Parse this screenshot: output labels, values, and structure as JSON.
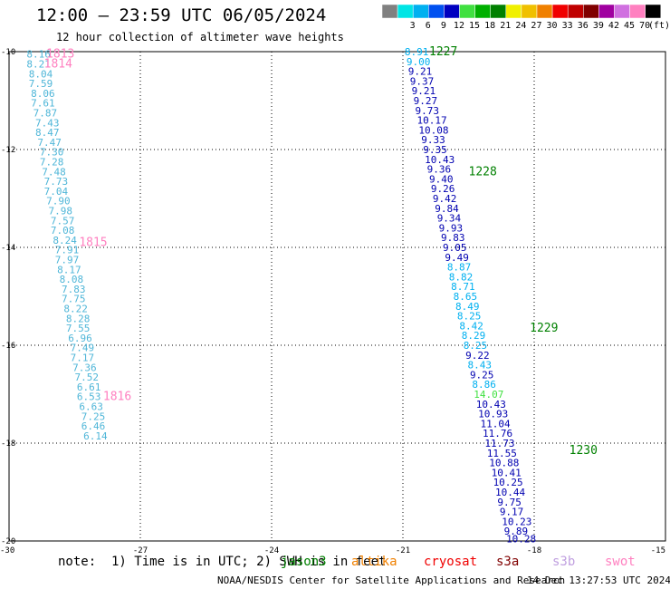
{
  "header": {
    "title": "12:00 — 23:59 UTC 06/05/2024",
    "subtitle": "12 hour collection of altimeter wave heights"
  },
  "colorbar": {
    "unit": "(ft)",
    "bins": [
      {
        "label": "",
        "color": "#808080"
      },
      {
        "label": "3",
        "color": "#00e5e5"
      },
      {
        "label": "6",
        "color": "#00b0f0"
      },
      {
        "label": "9",
        "color": "#0050f0"
      },
      {
        "label": "12",
        "color": "#0000c0"
      },
      {
        "label": "15",
        "color": "#40e040"
      },
      {
        "label": "18",
        "color": "#00b000"
      },
      {
        "label": "21",
        "color": "#008000"
      },
      {
        "label": "24",
        "color": "#f0f000"
      },
      {
        "label": "27",
        "color": "#f0c000"
      },
      {
        "label": "30",
        "color": "#f08000"
      },
      {
        "label": "33",
        "color": "#f00000"
      },
      {
        "label": "36",
        "color": "#c00000"
      },
      {
        "label": "39",
        "color": "#800000"
      },
      {
        "label": "42",
        "color": "#a000a0"
      },
      {
        "label": "45",
        "color": "#d070e0"
      },
      {
        "label": "70",
        "color": "#ff80c0"
      },
      {
        "label": "",
        "color": "#000000"
      }
    ]
  },
  "axes": {
    "x_ticks": [
      "-30",
      "-27",
      "-24",
      "-21",
      "-18",
      "-15"
    ],
    "y_ticks": [
      "-10",
      "-12",
      "-14",
      "-16",
      "-18",
      "-20"
    ]
  },
  "tracks": [
    {
      "name": "swot",
      "color": "#4fb6d8",
      "time_color": "#ff80c0",
      "times": [
        {
          "label": "1813",
          "lon": -29.15,
          "lat": -10.05
        },
        {
          "label": "1814",
          "lon": -29.2,
          "lat": -10.25
        },
        {
          "label": "1815",
          "lon": -28.4,
          "lat": -13.9
        },
        {
          "label": "1816",
          "lon": -27.85,
          "lat": -17.05
        }
      ],
      "points": [
        {
          "lon": -29.6,
          "lat": -10.05,
          "value": "8.16"
        },
        {
          "lon": -29.6,
          "lat": -10.25,
          "value": "8.21"
        },
        {
          "lon": -29.55,
          "lat": -10.45,
          "value": "8.04"
        },
        {
          "lon": -29.55,
          "lat": -10.65,
          "value": "7.59"
        },
        {
          "lon": -29.5,
          "lat": -10.85,
          "value": "8.06"
        },
        {
          "lon": -29.5,
          "lat": -11.05,
          "value": "7.61"
        },
        {
          "lon": -29.45,
          "lat": -11.25,
          "value": "7.87"
        },
        {
          "lon": -29.4,
          "lat": -11.45,
          "value": "7.43"
        },
        {
          "lon": -29.4,
          "lat": -11.65,
          "value": "8.47"
        },
        {
          "lon": -29.35,
          "lat": -11.85,
          "value": "7.47"
        },
        {
          "lon": -29.3,
          "lat": -12.05,
          "value": "7.30"
        },
        {
          "lon": -29.3,
          "lat": -12.25,
          "value": "7.28"
        },
        {
          "lon": -29.25,
          "lat": -12.45,
          "value": "7.48"
        },
        {
          "lon": -29.2,
          "lat": -12.65,
          "value": "7.73"
        },
        {
          "lon": -29.2,
          "lat": -12.85,
          "value": "7.04"
        },
        {
          "lon": -29.15,
          "lat": -13.05,
          "value": "7.90"
        },
        {
          "lon": -29.1,
          "lat": -13.25,
          "value": "7.98"
        },
        {
          "lon": -29.05,
          "lat": -13.45,
          "value": "7.57"
        },
        {
          "lon": -29.05,
          "lat": -13.65,
          "value": "7.08"
        },
        {
          "lon": -29.0,
          "lat": -13.85,
          "value": "8.24"
        },
        {
          "lon": -28.95,
          "lat": -14.05,
          "value": "7.91"
        },
        {
          "lon": -28.95,
          "lat": -14.25,
          "value": "7.97"
        },
        {
          "lon": -28.9,
          "lat": -14.45,
          "value": "8.17"
        },
        {
          "lon": -28.85,
          "lat": -14.65,
          "value": "8.08"
        },
        {
          "lon": -28.8,
          "lat": -14.85,
          "value": "7.83"
        },
        {
          "lon": -28.8,
          "lat": -15.05,
          "value": "7.75"
        },
        {
          "lon": -28.75,
          "lat": -15.25,
          "value": "8.22"
        },
        {
          "lon": -28.7,
          "lat": -15.45,
          "value": "8.28"
        },
        {
          "lon": -28.7,
          "lat": -15.65,
          "value": "7.55"
        },
        {
          "lon": -28.65,
          "lat": -15.85,
          "value": "6.96"
        },
        {
          "lon": -28.6,
          "lat": -16.05,
          "value": "7.49"
        },
        {
          "lon": -28.6,
          "lat": -16.25,
          "value": "7.17"
        },
        {
          "lon": -28.55,
          "lat": -16.45,
          "value": "7.36"
        },
        {
          "lon": -28.5,
          "lat": -16.65,
          "value": "7.52"
        },
        {
          "lon": -28.45,
          "lat": -16.85,
          "value": "6.61"
        },
        {
          "lon": -28.45,
          "lat": -17.05,
          "value": "6.53"
        },
        {
          "lon": -28.4,
          "lat": -17.25,
          "value": "6.63"
        },
        {
          "lon": -28.35,
          "lat": -17.45,
          "value": "7.25"
        },
        {
          "lon": -28.35,
          "lat": -17.65,
          "value": "6.46"
        },
        {
          "lon": -28.3,
          "lat": -17.85,
          "value": "6.14"
        }
      ]
    },
    {
      "name": "jason",
      "color": "#0000b0",
      "time_color": "#008000",
      "times": [
        {
          "label": "1227",
          "lon": -20.4,
          "lat": -10.0
        },
        {
          "label": "1228",
          "lon": -19.5,
          "lat": -12.45
        },
        {
          "label": "1229",
          "lon": -18.1,
          "lat": -15.65
        },
        {
          "lon": -17.2,
          "lat": -18.15,
          "label": "1230"
        }
      ],
      "points": [
        {
          "lon": -20.96,
          "lat": -10.0,
          "value": "8.91",
          "c": "#00b0f0"
        },
        {
          "lon": -20.92,
          "lat": -10.2,
          "value": "9.00",
          "c": "#00b0f0"
        },
        {
          "lon": -20.88,
          "lat": -10.4,
          "value": "9.21"
        },
        {
          "lon": -20.84,
          "lat": -10.6,
          "value": "9.37"
        },
        {
          "lon": -20.8,
          "lat": -10.8,
          "value": "9.21"
        },
        {
          "lon": -20.76,
          "lat": -11.0,
          "value": "9.27"
        },
        {
          "lon": -20.72,
          "lat": -11.2,
          "value": "9.73"
        },
        {
          "lon": -20.68,
          "lat": -11.4,
          "value": "10.17"
        },
        {
          "lon": -20.64,
          "lat": -11.6,
          "value": "10.08"
        },
        {
          "lon": -20.58,
          "lat": -11.8,
          "value": "9.33"
        },
        {
          "lon": -20.54,
          "lat": -12.0,
          "value": "9.35"
        },
        {
          "lon": -20.5,
          "lat": -12.2,
          "value": "10.43"
        },
        {
          "lon": -20.45,
          "lat": -12.4,
          "value": "9.36"
        },
        {
          "lon": -20.4,
          "lat": -12.6,
          "value": "9.40"
        },
        {
          "lon": -20.36,
          "lat": -12.8,
          "value": "9.26"
        },
        {
          "lon": -20.32,
          "lat": -13.0,
          "value": "9.42"
        },
        {
          "lon": -20.27,
          "lat": -13.2,
          "value": "9.84"
        },
        {
          "lon": -20.22,
          "lat": -13.4,
          "value": "9.34"
        },
        {
          "lon": -20.18,
          "lat": -13.6,
          "value": "9.93"
        },
        {
          "lon": -20.13,
          "lat": -13.8,
          "value": "9.83"
        },
        {
          "lon": -20.09,
          "lat": -14.0,
          "value": "9.05"
        },
        {
          "lon": -20.04,
          "lat": -14.2,
          "value": "9.49"
        },
        {
          "lon": -19.99,
          "lat": -14.4,
          "value": "8.87",
          "c": "#00b0f0"
        },
        {
          "lon": -19.95,
          "lat": -14.6,
          "value": "8.82",
          "c": "#00b0f0"
        },
        {
          "lon": -19.9,
          "lat": -14.8,
          "value": "8.71",
          "c": "#00b0f0"
        },
        {
          "lon": -19.85,
          "lat": -15.0,
          "value": "8.65",
          "c": "#00b0f0"
        },
        {
          "lon": -19.8,
          "lat": -15.2,
          "value": "8.49",
          "c": "#00b0f0"
        },
        {
          "lon": -19.76,
          "lat": -15.4,
          "value": "8.25",
          "c": "#00b0f0"
        },
        {
          "lon": -19.71,
          "lat": -15.6,
          "value": "8.42",
          "c": "#00b0f0"
        },
        {
          "lon": -19.66,
          "lat": -15.8,
          "value": "8.29",
          "c": "#00b0f0"
        },
        {
          "lon": -19.62,
          "lat": -16.0,
          "value": "8.25",
          "c": "#00b0f0"
        },
        {
          "lon": -19.57,
          "lat": -16.2,
          "value": "9.22"
        },
        {
          "lon": -19.52,
          "lat": -16.4,
          "value": "8.43",
          "c": "#00b0f0"
        },
        {
          "lon": -19.47,
          "lat": -16.6,
          "value": "9.25"
        },
        {
          "lon": -19.42,
          "lat": -16.8,
          "value": "8.86",
          "c": "#00b0f0"
        },
        {
          "lon": -19.38,
          "lat": -17.0,
          "value": "14.07",
          "c": "#40e040"
        },
        {
          "lon": -19.33,
          "lat": -17.2,
          "value": "10.43"
        },
        {
          "lon": -19.28,
          "lat": -17.4,
          "value": "10.93"
        },
        {
          "lon": -19.23,
          "lat": -17.6,
          "value": "11.04"
        },
        {
          "lon": -19.18,
          "lat": -17.8,
          "value": "11.76"
        },
        {
          "lon": -19.13,
          "lat": -18.0,
          "value": "11.73"
        },
        {
          "lon": -19.08,
          "lat": -18.2,
          "value": "11.55"
        },
        {
          "lon": -19.03,
          "lat": -18.4,
          "value": "10.88"
        },
        {
          "lon": -18.98,
          "lat": -18.6,
          "value": "10.41"
        },
        {
          "lon": -18.94,
          "lat": -18.8,
          "value": "10.25"
        },
        {
          "lon": -18.89,
          "lat": -19.0,
          "value": "10.44"
        },
        {
          "lon": -18.84,
          "lat": -19.2,
          "value": "9.75"
        },
        {
          "lon": -18.79,
          "lat": -19.4,
          "value": "9.17"
        },
        {
          "lon": -18.74,
          "lat": -19.6,
          "value": "10.23"
        },
        {
          "lon": -18.69,
          "lat": -19.8,
          "value": "9.89"
        },
        {
          "lon": -18.64,
          "lat": -19.95,
          "value": "10.28"
        }
      ]
    }
  ],
  "footer": {
    "note": "note:  1) Time is in UTC; 2) SWH is in feet",
    "satellites": [
      {
        "name": "jason3",
        "color": "#008000"
      },
      {
        "name": "altika",
        "color": "#f08000"
      },
      {
        "name": "cryosat",
        "color": "#f00000"
      },
      {
        "name": "s3a",
        "color": "#800000"
      },
      {
        "name": "s3b",
        "color": "#c0a0e0"
      },
      {
        "name": "swot",
        "color": "#ff80c0"
      }
    ],
    "credit": "NOAA/NESDIS Center for Satellite Applications and Research",
    "timestamp": "14 Dec 13:27:53 UTC 2024"
  }
}
